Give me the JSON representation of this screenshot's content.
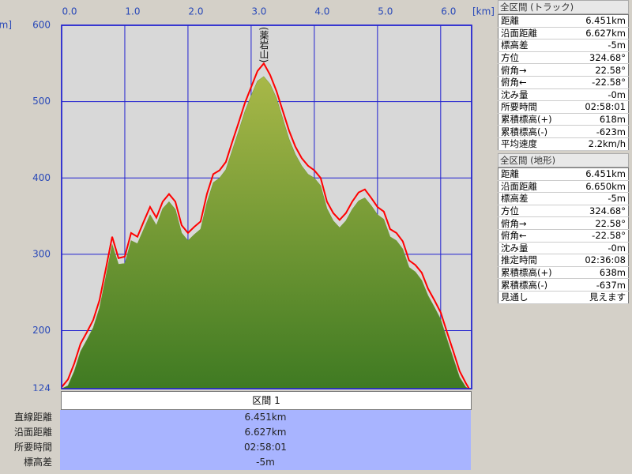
{
  "chart_data": {
    "type": "area",
    "x_label": "[km]",
    "y_label": "[m]",
    "annotations": [
      {
        "text": "(薬岩山)",
        "x": 3.2
      }
    ],
    "x": [
      0.0,
      0.1,
      0.2,
      0.3,
      0.4,
      0.5,
      0.6,
      0.7,
      0.8,
      0.9,
      1.0,
      1.1,
      1.2,
      1.3,
      1.4,
      1.5,
      1.6,
      1.7,
      1.8,
      1.9,
      2.0,
      2.1,
      2.2,
      2.3,
      2.4,
      2.5,
      2.6,
      2.7,
      2.8,
      2.9,
      3.0,
      3.1,
      3.2,
      3.3,
      3.4,
      3.5,
      3.6,
      3.7,
      3.8,
      3.9,
      4.0,
      4.1,
      4.2,
      4.3,
      4.4,
      4.5,
      4.6,
      4.7,
      4.8,
      4.9,
      5.0,
      5.1,
      5.2,
      5.3,
      5.4,
      5.5,
      5.6,
      5.7,
      5.8,
      5.9,
      6.0,
      6.1,
      6.2,
      6.3,
      6.4,
      6.45
    ],
    "series": [
      {
        "kind": "area",
        "color": "#6a9a30",
        "values": [
          124,
          128,
          147,
          173,
          188,
          204,
          230,
          271,
          313,
          287,
          288,
          318,
          314,
          333,
          352,
          338,
          360,
          369,
          359,
          328,
          318,
          326,
          333,
          368,
          394,
          400,
          411,
          436,
          461,
          487,
          508,
          527,
          533,
          523,
          505,
          478,
          451,
          431,
          416,
          405,
          400,
          390,
          360,
          344,
          335,
          344,
          359,
          370,
          374,
          364,
          352,
          346,
          323,
          318,
          307,
          283,
          277,
          266,
          246,
          231,
          215,
          189,
          164,
          139,
          126,
          124
        ]
      },
      {
        "kind": "line",
        "color": "#ff0000",
        "values": [
          126,
          136,
          157,
          183,
          198,
          214,
          240,
          281,
          323,
          295,
          297,
          328,
          323,
          343,
          362,
          348,
          369,
          379,
          369,
          338,
          328,
          336,
          343,
          379,
          405,
          410,
          421,
          447,
          472,
          498,
          519,
          540,
          550,
          535,
          514,
          488,
          462,
          441,
          426,
          416,
          410,
          400,
          369,
          354,
          345,
          354,
          369,
          381,
          385,
          374,
          362,
          356,
          333,
          328,
          317,
          292,
          286,
          276,
          255,
          240,
          224,
          198,
          173,
          147,
          131,
          124
        ]
      }
    ],
    "xlim": [
      0,
      6.49
    ],
    "ylim": [
      124,
      600
    ],
    "xticks": [
      {
        "value": 0,
        "label": "0.0"
      },
      {
        "value": 1,
        "label": "1.0"
      },
      {
        "value": 2,
        "label": "2.0"
      },
      {
        "value": 3,
        "label": "3.0"
      },
      {
        "value": 4,
        "label": "4.0"
      },
      {
        "value": 5,
        "label": "5.0"
      },
      {
        "value": 6,
        "label": "6.0"
      }
    ],
    "yticks": [
      124,
      200,
      300,
      400,
      500,
      600
    ],
    "grid": true
  },
  "section": {
    "title": "区間 1",
    "rows": [
      [
        "直線距離",
        "6.451km"
      ],
      [
        "沿面距離",
        "6.627km"
      ],
      [
        "所要時間",
        "02:58:01"
      ],
      [
        "標高差",
        "-5m"
      ]
    ]
  },
  "panels": [
    {
      "title": "全区間 (トラック)",
      "rows": [
        [
          "距離",
          "6.451km"
        ],
        [
          "沿面距離",
          "6.627km"
        ],
        [
          "標高差",
          "-5m"
        ],
        [
          "方位",
          "324.68°"
        ],
        [
          "俯角→",
          "22.58°"
        ],
        [
          "俯角←",
          "-22.58°"
        ],
        [
          "沈み量",
          "-0m"
        ],
        [
          "所要時間",
          "02:58:01"
        ],
        [
          "累積標高(+)",
          "618m"
        ],
        [
          "累積標高(-)",
          "-623m"
        ],
        [
          "平均速度",
          "2.2km/h"
        ]
      ]
    },
    {
      "title": "全区間 (地形)",
      "rows": [
        [
          "距離",
          "6.451km"
        ],
        [
          "沿面距離",
          "6.650km"
        ],
        [
          "標高差",
          "-5m"
        ],
        [
          "方位",
          "324.68°"
        ],
        [
          "俯角→",
          "22.58°"
        ],
        [
          "俯角←",
          "-22.58°"
        ],
        [
          "沈み量",
          "-0m"
        ],
        [
          "推定時間",
          "02:36:08"
        ],
        [
          "累積標高(+)",
          "638m"
        ],
        [
          "累積標高(-)",
          "-637m"
        ],
        [
          "見通し",
          "見えます"
        ]
      ]
    }
  ]
}
